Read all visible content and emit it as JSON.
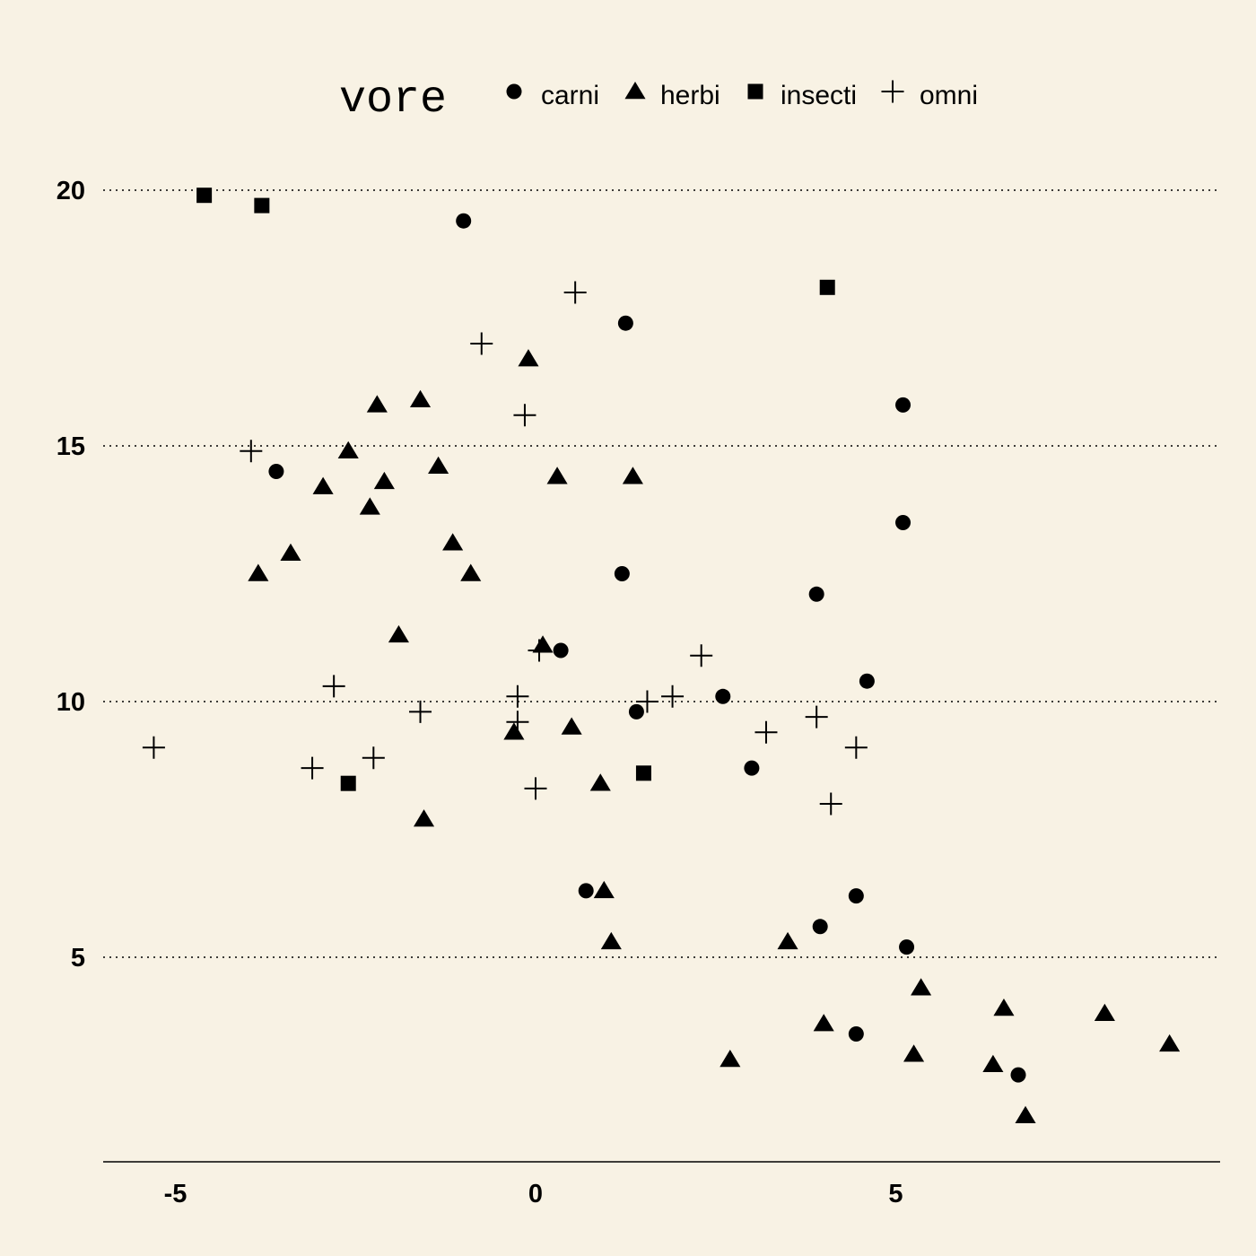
{
  "chart_data": {
    "type": "scatter",
    "title": "",
    "xlabel": "",
    "ylabel": "",
    "xlim": [
      -6,
      9.5
    ],
    "ylim": [
      1,
      21
    ],
    "x_ticks": [
      -5,
      0,
      5
    ],
    "y_ticks": [
      5,
      10,
      15,
      20
    ],
    "x_tick_labels": [
      "-5",
      "0",
      "5"
    ],
    "y_tick_labels": [
      "5",
      "10",
      "15",
      "20"
    ],
    "grid": "horizontal dotted",
    "legend": {
      "title": "vore",
      "position": "top",
      "entries": [
        "carni",
        "herbi",
        "insecti",
        "omni"
      ],
      "shapes": [
        "circle",
        "triangle",
        "square",
        "plus"
      ]
    },
    "series": [
      {
        "name": "carni",
        "shape": "circle",
        "points": [
          [
            -1.0,
            19.4
          ],
          [
            1.25,
            17.4
          ],
          [
            5.1,
            15.8
          ],
          [
            -3.6,
            14.5
          ],
          [
            5.1,
            13.5
          ],
          [
            1.2,
            12.5
          ],
          [
            3.9,
            12.1
          ],
          [
            0.35,
            11.0
          ],
          [
            4.6,
            10.4
          ],
          [
            2.6,
            10.1
          ],
          [
            1.4,
            9.8
          ],
          [
            3.0,
            8.7
          ],
          [
            0.7,
            6.3
          ],
          [
            4.45,
            6.2
          ],
          [
            3.95,
            5.6
          ],
          [
            5.15,
            5.2
          ],
          [
            4.45,
            3.5
          ],
          [
            6.7,
            2.7
          ]
        ]
      },
      {
        "name": "herbi",
        "shape": "triangle",
        "points": [
          [
            -0.1,
            16.7
          ],
          [
            -2.2,
            15.8
          ],
          [
            -1.6,
            15.9
          ],
          [
            -2.6,
            14.9
          ],
          [
            -1.35,
            14.6
          ],
          [
            -2.95,
            14.2
          ],
          [
            -2.1,
            14.3
          ],
          [
            0.3,
            14.4
          ],
          [
            1.35,
            14.4
          ],
          [
            -2.3,
            13.8
          ],
          [
            -1.15,
            13.1
          ],
          [
            -3.4,
            12.9
          ],
          [
            -3.85,
            12.5
          ],
          [
            -0.9,
            12.5
          ],
          [
            -1.9,
            11.3
          ],
          [
            0.1,
            11.1
          ],
          [
            -0.3,
            9.4
          ],
          [
            0.5,
            9.5
          ],
          [
            0.9,
            8.4
          ],
          [
            -1.55,
            7.7
          ],
          [
            0.95,
            6.3
          ],
          [
            1.05,
            5.3
          ],
          [
            3.5,
            5.3
          ],
          [
            5.35,
            4.4
          ],
          [
            4.0,
            3.7
          ],
          [
            6.5,
            4.0
          ],
          [
            7.9,
            3.9
          ],
          [
            2.7,
            3.0
          ],
          [
            5.25,
            3.1
          ],
          [
            6.35,
            2.9
          ],
          [
            8.8,
            3.3
          ],
          [
            6.8,
            1.9
          ]
        ]
      },
      {
        "name": "insecti",
        "shape": "square",
        "points": [
          [
            -4.6,
            19.9
          ],
          [
            -3.8,
            19.7
          ],
          [
            4.05,
            18.1
          ],
          [
            1.5,
            8.6
          ],
          [
            -2.6,
            8.4
          ]
        ]
      },
      {
        "name": "omni",
        "shape": "plus",
        "points": [
          [
            0.55,
            18.0
          ],
          [
            -0.75,
            17.0
          ],
          [
            -0.15,
            15.6
          ],
          [
            -3.95,
            14.9
          ],
          [
            0.05,
            11.0
          ],
          [
            2.3,
            10.9
          ],
          [
            -2.8,
            10.3
          ],
          [
            -0.25,
            10.1
          ],
          [
            1.9,
            10.1
          ],
          [
            1.55,
            10.0
          ],
          [
            -1.6,
            9.8
          ],
          [
            -0.25,
            9.6
          ],
          [
            3.9,
            9.7
          ],
          [
            3.2,
            9.4
          ],
          [
            -5.3,
            9.1
          ],
          [
            4.45,
            9.1
          ],
          [
            -2.25,
            8.9
          ],
          [
            -3.1,
            8.7
          ],
          [
            0.0,
            8.3
          ],
          [
            4.1,
            8.0
          ]
        ]
      }
    ]
  }
}
